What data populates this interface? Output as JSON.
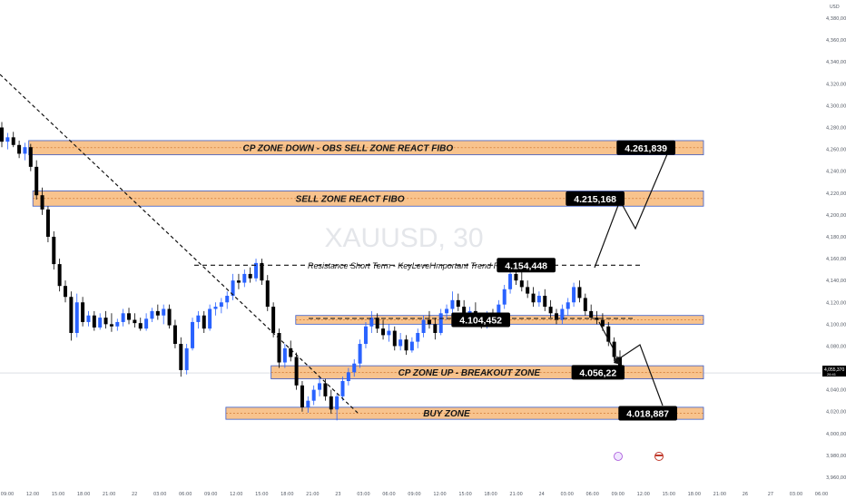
{
  "symbol": "XAUUSD",
  "interval": "30",
  "currency": "USD",
  "colors": {
    "up": "#2962ff",
    "down": "#000000",
    "zone_fill": "#f7b879",
    "zone_border": "#3a5bc7",
    "level_bg": "#000000",
    "price_tag_bg": "#000000"
  },
  "current_price_tag": {
    "price": "4,055,370",
    "sub": "26:41"
  },
  "chart_data": {
    "type": "candlestick",
    "y_range": [
      3960,
      4390
    ],
    "y_ticks": [
      "4,380,000",
      "4,360,000",
      "4,340,000",
      "4,320,000",
      "4,300,000",
      "4,280,000",
      "4,260,000",
      "4,240,000",
      "4,220,000",
      "4,200,000",
      "4,180,000",
      "4,160,000",
      "4,140,000",
      "4,120,000",
      "4,100,000",
      "4,080,000",
      "4,060,000",
      "4,040,000",
      "4,020,000",
      "4,000,000",
      "3,980,000",
      "3,960,000"
    ],
    "x_ticks": [
      "09:00",
      "12:00",
      "15:00",
      "18:00",
      "21:00",
      "22",
      "03:00",
      "06:00",
      "09:00",
      "12:00",
      "15:00",
      "18:00",
      "21:00",
      "23",
      "03:00",
      "06:00",
      "09:00",
      "12:00",
      "15:00",
      "18:00",
      "21:00",
      "24",
      "03:00",
      "06:00",
      "09:00",
      "12:00",
      "15:00",
      "18:00",
      "21:00",
      "26",
      "27",
      "03:00",
      "06:00"
    ],
    "candles": [
      [
        4280,
        4285,
        4262,
        4267
      ],
      [
        4267,
        4275,
        4260,
        4271
      ],
      [
        4271,
        4276,
        4262,
        4264
      ],
      [
        4264,
        4268,
        4252,
        4256
      ],
      [
        4256,
        4266,
        4250,
        4262
      ],
      [
        4262,
        4265,
        4240,
        4244
      ],
      [
        4244,
        4250,
        4214,
        4218
      ],
      [
        4218,
        4225,
        4200,
        4205
      ],
      [
        4205,
        4208,
        4175,
        4180
      ],
      [
        4180,
        4185,
        4150,
        4155
      ],
      [
        4155,
        4160,
        4130,
        4135
      ],
      [
        4135,
        4140,
        4120,
        4125
      ],
      [
        4125,
        4130,
        4085,
        4092
      ],
      [
        4092,
        4128,
        4088,
        4120
      ],
      [
        4120,
        4125,
        4098,
        4102
      ],
      [
        4102,
        4112,
        4098,
        4108
      ],
      [
        4108,
        4112,
        4094,
        4097
      ],
      [
        4097,
        4110,
        4095,
        4106
      ],
      [
        4106,
        4112,
        4096,
        4100
      ],
      [
        4100,
        4110,
        4093,
        4098
      ],
      [
        4098,
        4105,
        4094,
        4102
      ],
      [
        4102,
        4114,
        4098,
        4110
      ],
      [
        4110,
        4115,
        4100,
        4104
      ],
      [
        4104,
        4110,
        4097,
        4101
      ],
      [
        4101,
        4106,
        4094,
        4096
      ],
      [
        4096,
        4110,
        4094,
        4105
      ],
      [
        4105,
        4115,
        4102,
        4112
      ],
      [
        4112,
        4118,
        4104,
        4108
      ],
      [
        4108,
        4118,
        4100,
        4114
      ],
      [
        4114,
        4118,
        4096,
        4099
      ],
      [
        4099,
        4104,
        4078,
        4082
      ],
      [
        4082,
        4088,
        4052,
        4058
      ],
      [
        4058,
        4082,
        4054,
        4078
      ],
      [
        4078,
        4106,
        4076,
        4102
      ],
      [
        4102,
        4112,
        4096,
        4108
      ],
      [
        4108,
        4112,
        4092,
        4096
      ],
      [
        4096,
        4118,
        4094,
        4114
      ],
      [
        4114,
        4120,
        4108,
        4116
      ],
      [
        4116,
        4124,
        4110,
        4120
      ],
      [
        4120,
        4130,
        4114,
        4126
      ],
      [
        4126,
        4146,
        4122,
        4140
      ],
      [
        4140,
        4146,
        4132,
        4138
      ],
      [
        4138,
        4150,
        4134,
        4146
      ],
      [
        4146,
        4152,
        4138,
        4142
      ],
      [
        4142,
        4160,
        4139,
        4156
      ],
      [
        4156,
        4160,
        4136,
        4140
      ],
      [
        4140,
        4145,
        4112,
        4116
      ],
      [
        4116,
        4120,
        4088,
        4092
      ],
      [
        4092,
        4096,
        4060,
        4065
      ],
      [
        4065,
        4082,
        4060,
        4078
      ],
      [
        4078,
        4085,
        4066,
        4070
      ],
      [
        4070,
        4074,
        4040,
        4044
      ],
      [
        4044,
        4048,
        4020,
        4024
      ],
      [
        4024,
        4034,
        4019,
        4030
      ],
      [
        4030,
        4044,
        4026,
        4040
      ],
      [
        4040,
        4052,
        4034,
        4046
      ],
      [
        4046,
        4050,
        4030,
        4034
      ],
      [
        4034,
        4040,
        4018,
        4022
      ],
      [
        4022,
        4036,
        4012,
        4034
      ],
      [
        4034,
        4052,
        4030,
        4048
      ],
      [
        4048,
        4060,
        4044,
        4056
      ],
      [
        4056,
        4068,
        4052,
        4064
      ],
      [
        4064,
        4086,
        4060,
        4082
      ],
      [
        4082,
        4102,
        4078,
        4098
      ],
      [
        4098,
        4112,
        4092,
        4106
      ],
      [
        4106,
        4110,
        4092,
        4096
      ],
      [
        4096,
        4104,
        4086,
        4090
      ],
      [
        4090,
        4100,
        4084,
        4094
      ],
      [
        4094,
        4098,
        4076,
        4080
      ],
      [
        4080,
        4092,
        4076,
        4086
      ],
      [
        4086,
        4090,
        4072,
        4076
      ],
      [
        4076,
        4088,
        4074,
        4084
      ],
      [
        4084,
        4096,
        4078,
        4092
      ],
      [
        4092,
        4108,
        4088,
        4104
      ],
      [
        4104,
        4112,
        4096,
        4100
      ],
      [
        4100,
        4106,
        4086,
        4092
      ],
      [
        4092,
        4114,
        4090,
        4110
      ],
      [
        4110,
        4118,
        4104,
        4114
      ],
      [
        4114,
        4130,
        4108,
        4122
      ],
      [
        4122,
        4128,
        4112,
        4116
      ],
      [
        4116,
        4122,
        4104,
        4108
      ],
      [
        4108,
        4116,
        4100,
        4112
      ],
      [
        4112,
        4120,
        4104,
        4106
      ],
      [
        4106,
        4110,
        4096,
        4100
      ],
      [
        4100,
        4112,
        4096,
        4108
      ],
      [
        4108,
        4114,
        4100,
        4104
      ],
      [
        4104,
        4122,
        4102,
        4118
      ],
      [
        4118,
        4136,
        4114,
        4132
      ],
      [
        4132,
        4150,
        4128,
        4146
      ],
      [
        4146,
        4152,
        4136,
        4140
      ],
      [
        4140,
        4148,
        4130,
        4134
      ],
      [
        4134,
        4140,
        4124,
        4128
      ],
      [
        4128,
        4134,
        4116,
        4120
      ],
      [
        4120,
        4130,
        4116,
        4126
      ],
      [
        4126,
        4132,
        4112,
        4116
      ],
      [
        4116,
        4122,
        4106,
        4110
      ],
      [
        4110,
        4114,
        4100,
        4104
      ],
      [
        4104,
        4118,
        4100,
        4114
      ],
      [
        4114,
        4124,
        4108,
        4120
      ],
      [
        4120,
        4138,
        4116,
        4134
      ],
      [
        4134,
        4140,
        4120,
        4124
      ],
      [
        4124,
        4128,
        4108,
        4112
      ],
      [
        4112,
        4118,
        4104,
        4106
      ],
      [
        4106,
        4112,
        4100,
        4104
      ],
      [
        4104,
        4110,
        4094,
        4098
      ],
      [
        4098,
        4102,
        4080,
        4084
      ],
      [
        4084,
        4088,
        4066,
        4070
      ],
      [
        4070,
        4076,
        4052,
        4056
      ]
    ],
    "zones": [
      {
        "label": "CP ZONE DOWN - OBS SELL ZONE REACT FIBO",
        "low": 4255,
        "high": 4268,
        "x_start": 0.035,
        "level": "4.261,839"
      },
      {
        "label": "SELL ZONE REACT FIBO",
        "low": 4208,
        "high": 4222,
        "x_start": 0.04,
        "level": "4.215,168"
      },
      {
        "label": "",
        "low": 4100,
        "high": 4108,
        "x_start": 0.36,
        "level": "4.104,452"
      },
      {
        "label": "CP ZONE UP - BREAKOUT ZONE",
        "low": 4050,
        "high": 4062,
        "x_start": 0.33,
        "level": "4.056,22"
      },
      {
        "label": "BUY ZONE",
        "low": 4013,
        "high": 4024,
        "x_start": 0.275,
        "level": "4.018,887"
      }
    ],
    "resistance_line": {
      "label": "Resistance Short Term - KeyLevel Important Trend Rever",
      "price": 4154,
      "level": "4.154,448"
    },
    "current_price": 4055.37
  }
}
